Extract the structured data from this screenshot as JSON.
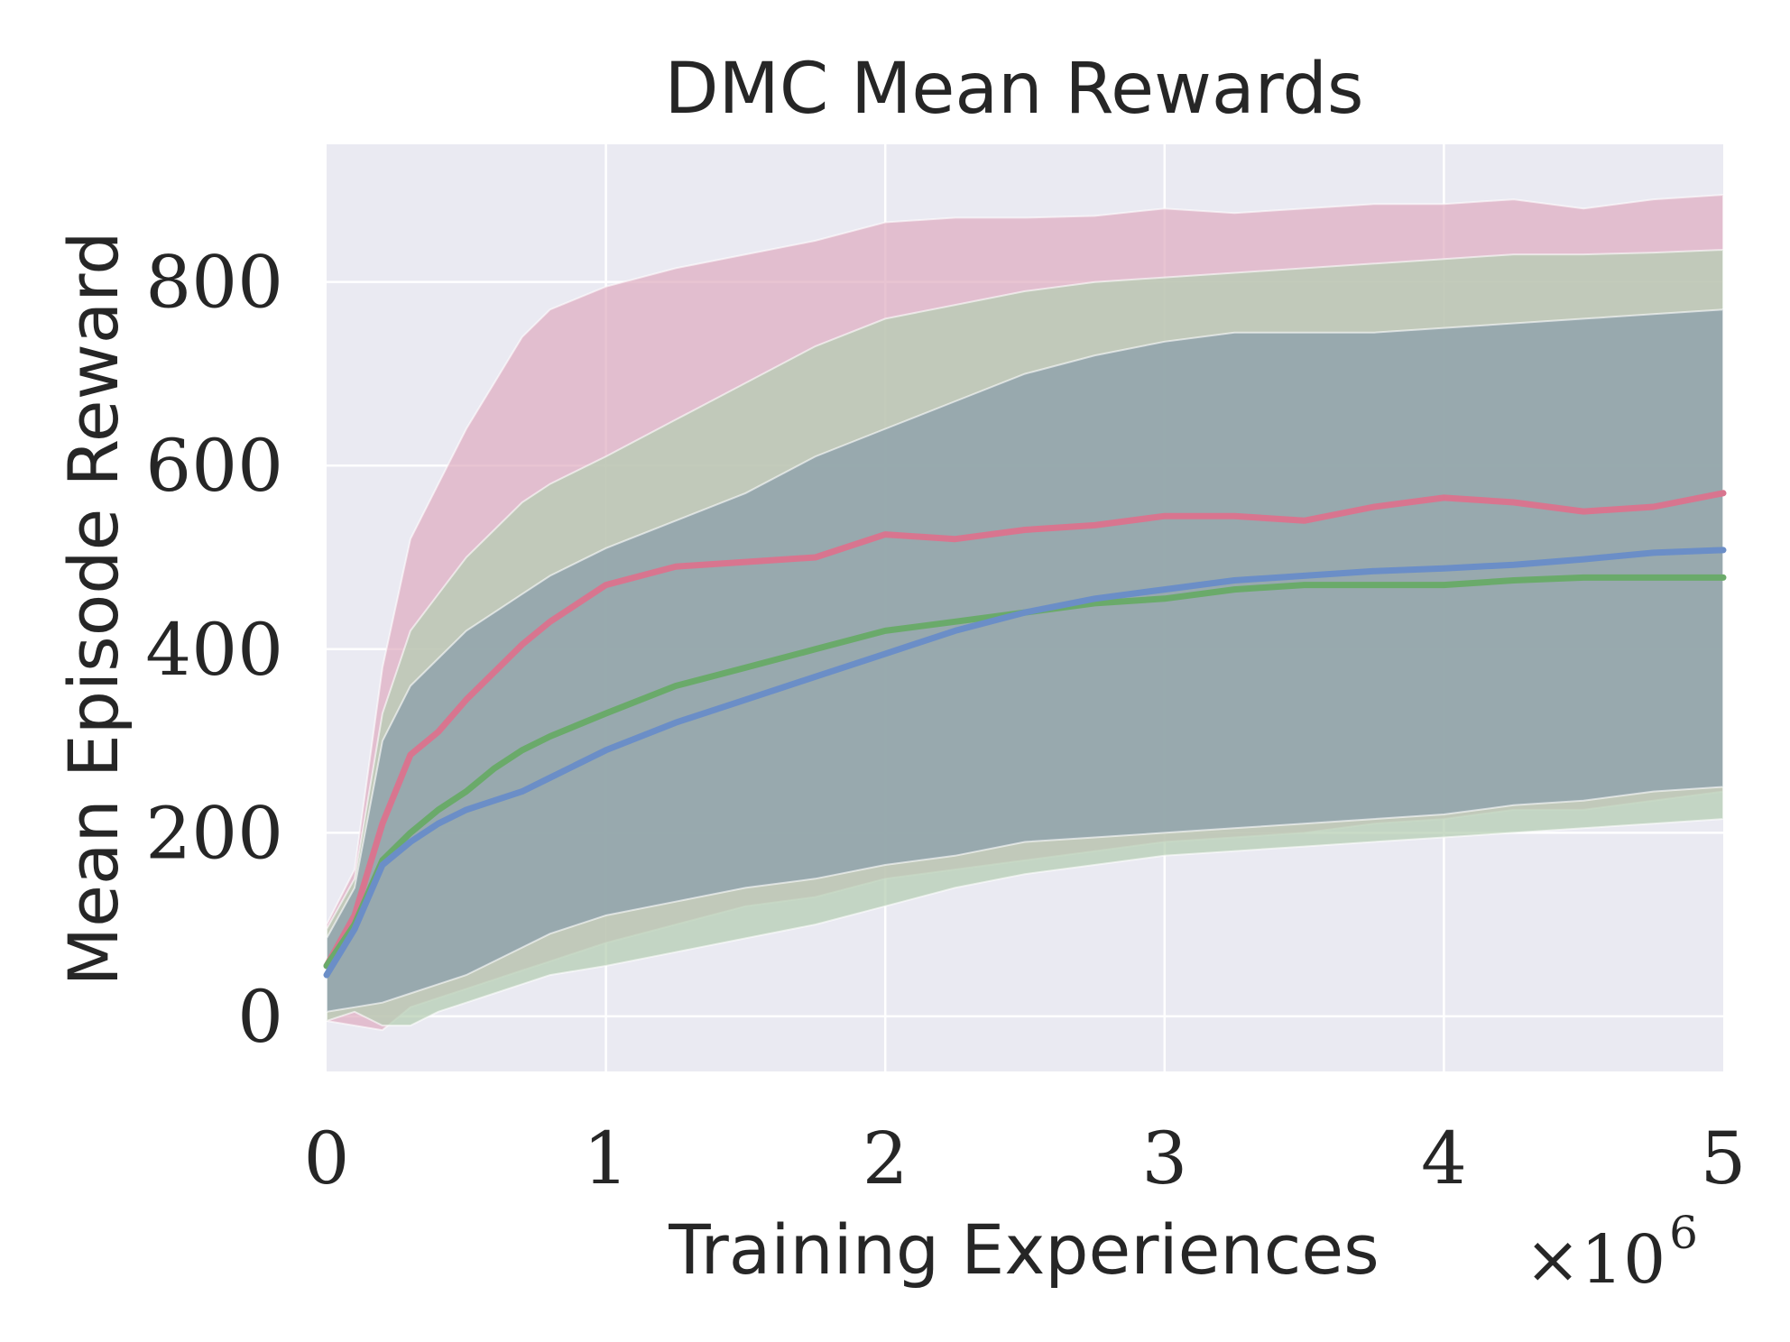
{
  "chart_data": {
    "type": "area",
    "title": "DMC Mean Rewards",
    "xlabel": "Training Experiences",
    "ylabel": "Mean Episode Reward",
    "x_offset_label": "×10",
    "x_offset_exponent": "6",
    "xlim": [
      0,
      5
    ],
    "ylim": [
      -60,
      950
    ],
    "xticks": [
      0,
      1,
      2,
      3,
      4,
      5
    ],
    "yticks": [
      0,
      200,
      400,
      600,
      800
    ],
    "xtick_labels": [
      "0",
      "1",
      "2",
      "3",
      "4",
      "5"
    ],
    "ytick_labels": [
      "0",
      "200",
      "400",
      "600",
      "800"
    ],
    "grid": true,
    "background": "#eaeaf2",
    "x": [
      0,
      0.1,
      0.2,
      0.3,
      0.4,
      0.5,
      0.6,
      0.7,
      0.8,
      1.0,
      1.25,
      1.5,
      1.75,
      2.0,
      2.25,
      2.5,
      2.75,
      3.0,
      3.25,
      3.5,
      3.75,
      4.0,
      4.25,
      4.5,
      4.75,
      5.0
    ],
    "series": [
      {
        "color": "#d8758f",
        "band_color": "#dfadc0",
        "values": [
          55,
          110,
          210,
          285,
          310,
          345,
          375,
          405,
          430,
          470,
          490,
          495,
          500,
          525,
          520,
          530,
          535,
          545,
          545,
          540,
          555,
          565,
          560,
          550,
          555,
          570
        ],
        "upper": [
          100,
          160,
          380,
          520,
          580,
          640,
          690,
          740,
          770,
          795,
          815,
          830,
          845,
          865,
          870,
          870,
          872,
          880,
          875,
          880,
          885,
          885,
          890,
          880,
          890,
          895
        ],
        "lower": [
          -5,
          -10,
          -15,
          10,
          20,
          30,
          40,
          50,
          60,
          80,
          100,
          120,
          130,
          150,
          160,
          170,
          180,
          190,
          195,
          200,
          210,
          215,
          225,
          225,
          235,
          245
        ]
      },
      {
        "color": "#6aaa6a",
        "band_color": "#b4cdb1",
        "values": [
          55,
          100,
          170,
          200,
          225,
          245,
          270,
          290,
          305,
          330,
          360,
          380,
          400,
          420,
          430,
          440,
          450,
          455,
          465,
          470,
          470,
          470,
          475,
          478,
          478,
          478
        ],
        "upper": [
          95,
          150,
          330,
          420,
          460,
          500,
          530,
          560,
          580,
          610,
          650,
          690,
          730,
          760,
          775,
          790,
          800,
          805,
          810,
          815,
          820,
          825,
          830,
          830,
          832,
          835
        ],
        "lower": [
          -5,
          5,
          -10,
          -10,
          5,
          15,
          25,
          35,
          45,
          55,
          70,
          85,
          100,
          120,
          140,
          155,
          165,
          175,
          180,
          185,
          190,
          195,
          200,
          205,
          210,
          215
        ]
      },
      {
        "color": "#6b8ec7",
        "band_color": "#889ca9",
        "values": [
          45,
          95,
          165,
          190,
          210,
          225,
          235,
          245,
          260,
          290,
          320,
          345,
          370,
          395,
          420,
          440,
          455,
          465,
          475,
          480,
          485,
          488,
          492,
          498,
          505,
          508
        ],
        "upper": [
          85,
          140,
          300,
          360,
          390,
          420,
          440,
          460,
          480,
          510,
          540,
          570,
          610,
          640,
          670,
          700,
          720,
          735,
          745,
          745,
          745,
          750,
          755,
          760,
          765,
          770
        ],
        "lower": [
          5,
          10,
          15,
          25,
          35,
          45,
          60,
          75,
          90,
          110,
          125,
          140,
          150,
          165,
          175,
          190,
          195,
          200,
          205,
          210,
          215,
          220,
          230,
          235,
          245,
          250
        ]
      }
    ]
  }
}
